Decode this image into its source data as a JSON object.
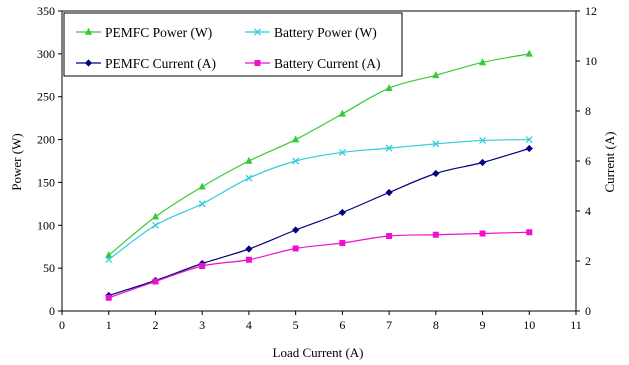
{
  "chart_data": {
    "type": "line",
    "xlabel": "Load Current (A)",
    "ylabel": "Power (W)",
    "y2label": "Current (A)",
    "xlim": [
      0,
      11
    ],
    "ylim": [
      0,
      350
    ],
    "y2lim": [
      0,
      12
    ],
    "xticks": [
      0,
      1,
      2,
      3,
      4,
      5,
      6,
      7,
      8,
      9,
      10,
      11
    ],
    "yticks": [
      0,
      50,
      100,
      150,
      200,
      250,
      300,
      350
    ],
    "y2ticks": [
      0,
      2,
      4,
      6,
      8,
      10,
      12
    ],
    "grid": false,
    "legend_position": "top-left",
    "x": [
      1,
      2,
      3,
      4,
      5,
      6,
      7,
      8,
      9,
      10
    ],
    "series": [
      {
        "name": "PEMFC Power (W)",
        "axis": "left",
        "color": "#33cc33",
        "marker": "triangle",
        "values": [
          65,
          110,
          145,
          175,
          200,
          230,
          260,
          275,
          290,
          300
        ]
      },
      {
        "name": "Battery Power (W)",
        "axis": "left",
        "color": "#33ccdd",
        "marker": "x",
        "values": [
          60,
          100,
          125,
          155,
          175,
          185,
          190,
          195,
          199,
          200
        ]
      },
      {
        "name": "PEMFC Current (A)",
        "axis": "right",
        "color": "#000080",
        "marker": "diamond",
        "values": [
          0.62,
          1.22,
          1.9,
          2.48,
          3.24,
          3.94,
          4.74,
          5.5,
          5.94,
          6.5
        ]
      },
      {
        "name": "Battery Current (A)",
        "axis": "right",
        "color": "#ee11cc",
        "marker": "square",
        "values": [
          0.53,
          1.18,
          1.8,
          2.05,
          2.5,
          2.72,
          3.0,
          3.05,
          3.1,
          3.15
        ]
      }
    ]
  }
}
